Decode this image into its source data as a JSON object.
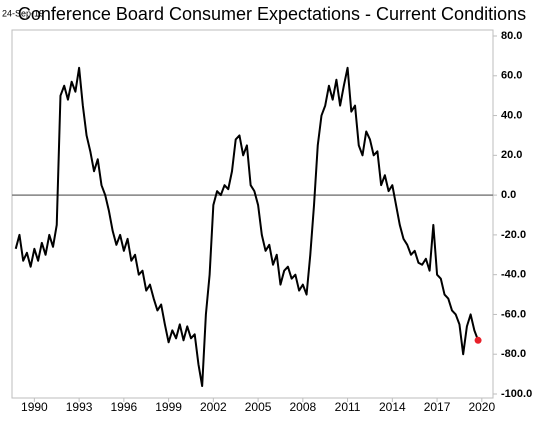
{
  "chart_data": {
    "type": "line",
    "title": "Conference Board Consumer Expectations - Current Conditions",
    "date_label": "24-Sep-19",
    "x": [
      1988.75,
      1989,
      1989.25,
      1989.5,
      1989.75,
      1990,
      1990.25,
      1990.5,
      1990.75,
      1991,
      1991.25,
      1991.5,
      1991.75,
      1992,
      1992.25,
      1992.5,
      1992.75,
      1993,
      1993.25,
      1993.5,
      1993.75,
      1994,
      1994.25,
      1994.5,
      1994.75,
      1995,
      1995.25,
      1995.5,
      1995.75,
      1996,
      1996.25,
      1996.5,
      1996.75,
      1997,
      1997.25,
      1997.5,
      1997.75,
      1998,
      1998.25,
      1998.5,
      1998.75,
      1999,
      1999.25,
      1999.5,
      1999.75,
      2000,
      2000.25,
      2000.5,
      2000.75,
      2001,
      2001.25,
      2001.5,
      2001.75,
      2002,
      2002.25,
      2002.5,
      2002.75,
      2003,
      2003.25,
      2003.5,
      2003.75,
      2004,
      2004.25,
      2004.5,
      2004.75,
      2005,
      2005.25,
      2005.5,
      2005.75,
      2006,
      2006.25,
      2006.5,
      2006.75,
      2007,
      2007.25,
      2007.5,
      2007.75,
      2008,
      2008.25,
      2008.5,
      2008.75,
      2009,
      2009.25,
      2009.5,
      2009.75,
      2010,
      2010.25,
      2010.5,
      2010.75,
      2011,
      2011.25,
      2011.5,
      2011.75,
      2012,
      2012.25,
      2012.5,
      2012.75,
      2013,
      2013.25,
      2013.5,
      2013.75,
      2014,
      2014.25,
      2014.5,
      2014.75,
      2015,
      2015.25,
      2015.5,
      2015.75,
      2016,
      2016.25,
      2016.5,
      2016.75,
      2017,
      2017.25,
      2017.5,
      2017.75,
      2018,
      2018.25,
      2018.5,
      2018.75,
      2019,
      2019.25,
      2019.5,
      2019.75
    ],
    "values": [
      -27,
      -20,
      -33,
      -29,
      -36,
      -27,
      -33,
      -24,
      -30,
      -20,
      -26,
      -15,
      50,
      55,
      48,
      57,
      52,
      64,
      45,
      30,
      22,
      12,
      18,
      5,
      0,
      -8,
      -18,
      -25,
      -20,
      -28,
      -22,
      -33,
      -30,
      -40,
      -38,
      -48,
      -45,
      -52,
      -58,
      -55,
      -65,
      -74,
      -68,
      -72,
      -65,
      -73,
      -66,
      -72,
      -70,
      -85,
      -96,
      -60,
      -40,
      -5,
      2,
      0,
      5,
      3,
      12,
      28,
      30,
      20,
      25,
      5,
      2,
      -5,
      -20,
      -28,
      -25,
      -35,
      -30,
      -45,
      -38,
      -36,
      -42,
      -40,
      -48,
      -45,
      -50,
      -30,
      -5,
      25,
      40,
      45,
      55,
      48,
      58,
      45,
      55,
      64,
      42,
      45,
      25,
      20,
      32,
      28,
      20,
      22,
      5,
      10,
      2,
      5,
      -5,
      -15,
      -22,
      -25,
      -30,
      -28,
      -34,
      -35,
      -32,
      -38,
      -15,
      -40,
      -42,
      -50,
      -52,
      -58,
      -60,
      -65,
      -80,
      -66,
      -60,
      -68,
      -73
    ],
    "color": "#000000",
    "last_point_color": "#e8202a",
    "zero_line": true,
    "xlim": [
      1988.5,
      2020.75
    ],
    "xticks": [
      1990,
      1993,
      1996,
      1999,
      2002,
      2005,
      2008,
      2011,
      2014,
      2017,
      2020
    ],
    "ylim": [
      -100,
      80
    ],
    "yticks": [
      {
        "value": -100,
        "label": "-100.0"
      },
      {
        "value": -80,
        "label": "-80.0"
      },
      {
        "value": -60,
        "label": "-60.0"
      },
      {
        "value": -40,
        "label": "-40.0"
      },
      {
        "value": -20,
        "label": "-20.0"
      },
      {
        "value": 0,
        "label": "0.0"
      },
      {
        "value": 20,
        "label": "20.0"
      },
      {
        "value": 40,
        "label": "40.0"
      },
      {
        "value": 60,
        "label": "60.0"
      },
      {
        "value": 80,
        "label": "80.0"
      }
    ]
  }
}
